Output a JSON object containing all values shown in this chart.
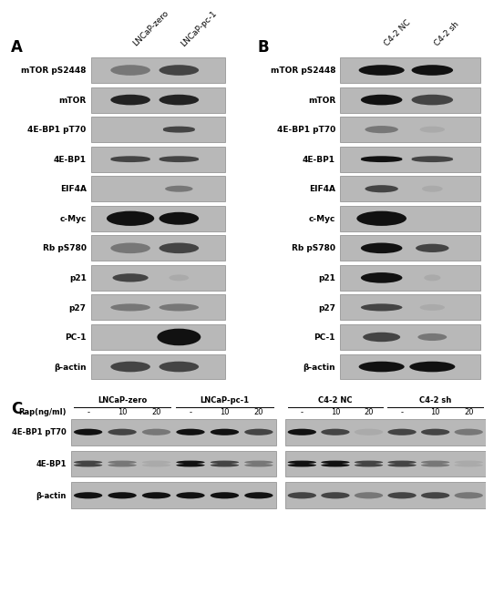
{
  "panel_A_col_labels": [
    "LNCaP-zero",
    "LNCaP-pc-1"
  ],
  "panel_B_col_labels": [
    "C4-2 NC",
    "C4-2 sh"
  ],
  "panel_AB_row_labels": [
    "mTOR pS2448",
    "mTOR",
    "4E-BP1 pT70",
    "4E-BP1",
    "EIF4A",
    "c-Myc",
    "Rb pS780",
    "p21",
    "p27",
    "PC-1",
    "β-actin"
  ],
  "panel_C_row_labels": [
    "4E-BP1 pT70",
    "4E-BP1",
    "β-actin"
  ],
  "panel_C_groups": [
    "LNCaP-zero",
    "LNCaP-pc-1",
    "C4-2 NC",
    "C4-2 sh"
  ],
  "panel_C_doses": [
    "-",
    "10",
    "20"
  ],
  "box_bg": "#b8b8b8",
  "box_edge": "#888888",
  "white": "#ffffff",
  "label_fontsize": 6.5,
  "header_fontsize": 6.5,
  "panel_label_fontsize": 12
}
